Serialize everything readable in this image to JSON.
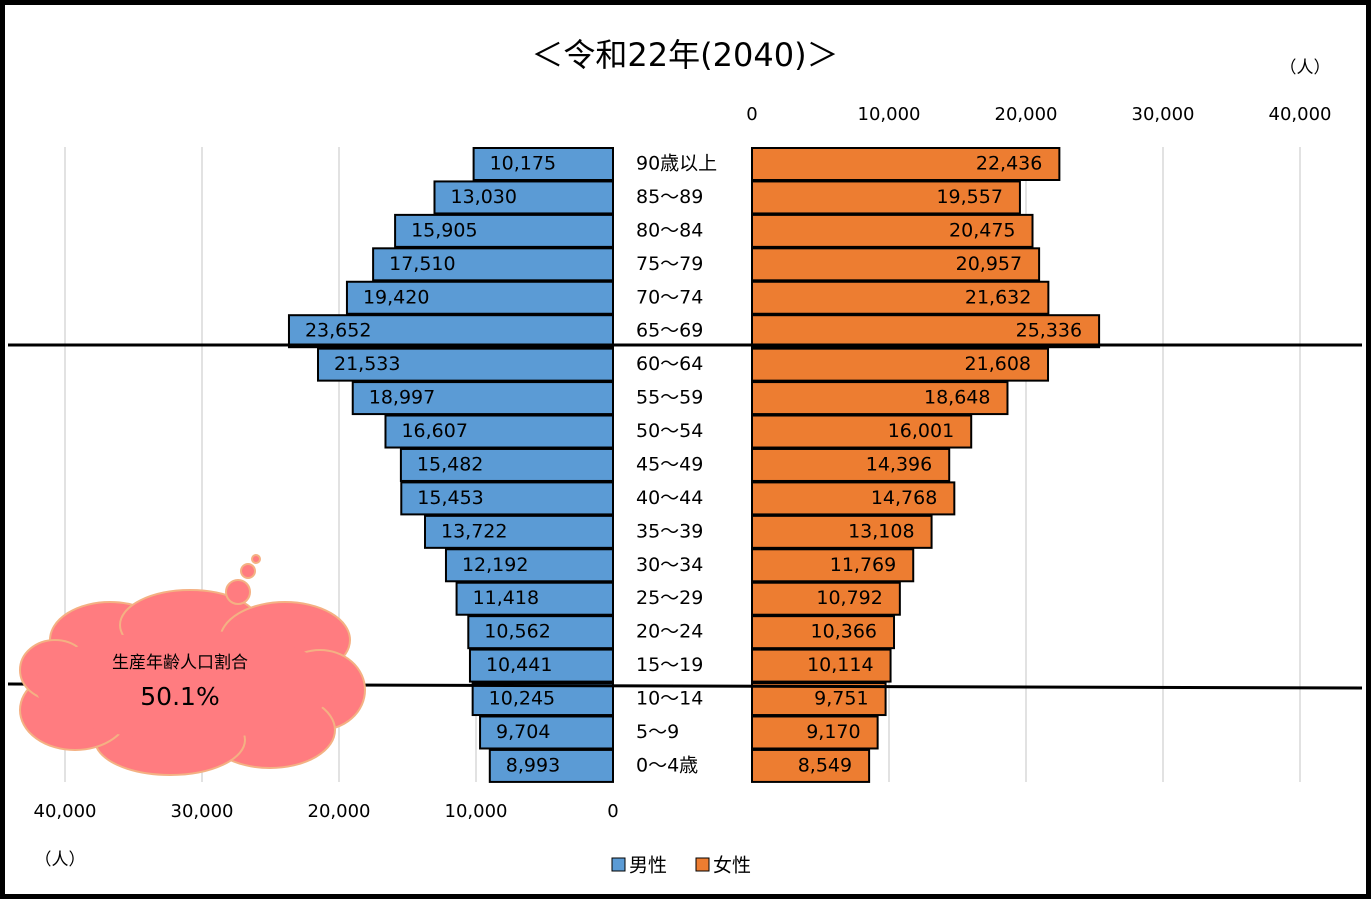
{
  "chart_data": {
    "type": "pyramid",
    "title": "＜令和22年(2040)＞",
    "unit_label": "（人）",
    "categories": [
      "90歳以上",
      "85〜89",
      "80〜84",
      "75〜79",
      "70〜74",
      "65〜69",
      "60〜64",
      "55〜59",
      "50〜54",
      "45〜49",
      "40〜44",
      "35〜39",
      "30〜34",
      "25〜29",
      "20〜24",
      "15〜19",
      "10〜14",
      "5〜9",
      "0〜4歳"
    ],
    "series": [
      {
        "name": "男性",
        "color": "#5b9bd5",
        "values": [
          10175,
          13030,
          15905,
          17510,
          19420,
          23652,
          21533,
          18997,
          16607,
          15482,
          15453,
          13722,
          12192,
          11418,
          10562,
          10441,
          10245,
          9704,
          8993
        ],
        "value_labels": [
          "10,175",
          "13,030",
          "15,905",
          "17,510",
          "19,420",
          "23,652",
          "21,533",
          "18,997",
          "16,607",
          "15,482",
          "15,453",
          "13,722",
          "12,192",
          "11,418",
          "10,562",
          "10,441",
          "10,245",
          "9,704",
          "8,993"
        ]
      },
      {
        "name": "女性",
        "color": "#ed7d31",
        "values": [
          22436,
          19557,
          20475,
          20957,
          21632,
          25336,
          21608,
          18648,
          16001,
          14396,
          14768,
          13108,
          11769,
          10792,
          10366,
          10114,
          9751,
          9170,
          8549
        ],
        "value_labels": [
          "22,436",
          "19,557",
          "20,475",
          "20,957",
          "21,632",
          "25,336",
          "21,608",
          "18,648",
          "16,001",
          "14,396",
          "14,768",
          "13,108",
          "11,769",
          "10,792",
          "10,366",
          "10,114",
          "9,751",
          "9,170",
          "8,549"
        ]
      }
    ],
    "xlim": [
      0,
      40000
    ],
    "xticks": [
      0,
      {
        "value": 10000,
        "label": "10,000"
      },
      {
        "value": 20000,
        "label": "20,000"
      },
      {
        "value": 30000,
        "label": "30,000"
      },
      {
        "value": 40000,
        "label": "40,000"
      }
    ],
    "grid": true,
    "annotation": {
      "label": "生産年齢人口割合",
      "value": "50.1%"
    }
  }
}
